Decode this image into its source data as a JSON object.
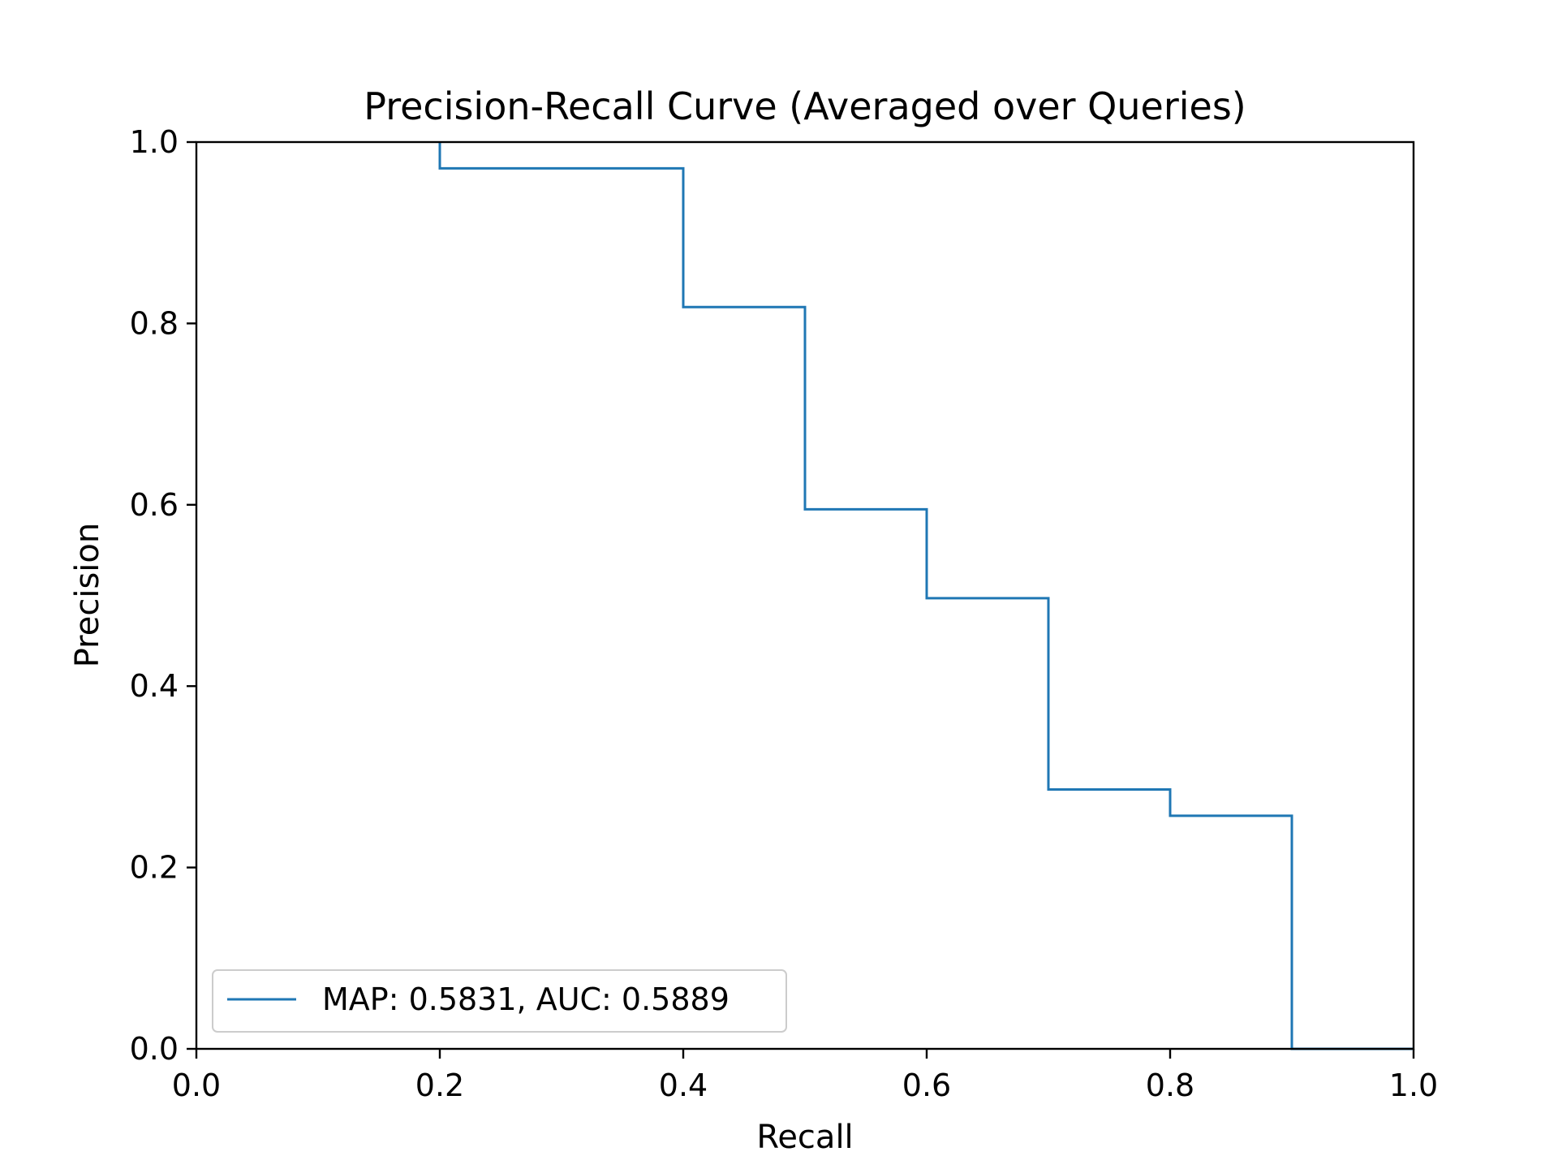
{
  "chart_data": {
    "type": "line",
    "title": "Precision-Recall Curve (Averaged over Queries)",
    "xlabel": "Recall",
    "ylabel": "Precision",
    "xlim": [
      0.0,
      1.0
    ],
    "ylim": [
      0.0,
      1.0
    ],
    "xticks": [
      "0.0",
      "0.2",
      "0.4",
      "0.6",
      "0.8",
      "1.0"
    ],
    "yticks": [
      "0.0",
      "0.2",
      "0.4",
      "0.6",
      "0.8",
      "1.0"
    ],
    "grid": false,
    "legend_position": "lower-left",
    "step": "post",
    "series": [
      {
        "name": "MAP: 0.5831, AUC: 0.5889",
        "color": "#1f77b4",
        "x": [
          0.2,
          0.2,
          0.4,
          0.5,
          0.6,
          0.7,
          0.8,
          0.9,
          1.0
        ],
        "y": [
          1.0,
          0.971,
          0.818,
          0.595,
          0.497,
          0.286,
          0.257,
          0.0,
          0.0
        ]
      }
    ]
  }
}
